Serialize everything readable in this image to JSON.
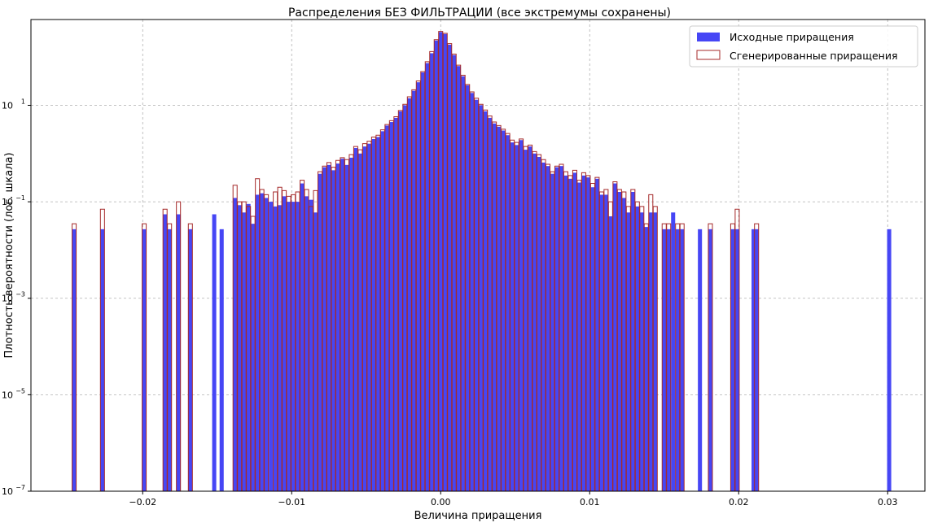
{
  "chart_data": {
    "type": "histogram",
    "title": "Распределения БЕЗ ФИЛЬТРАЦИИ (все экстремумы сохранены)",
    "xlabel": "Величина приращения",
    "ylabel": "Плотность вероятности (лог. шкала)",
    "xlim": [
      -0.0275,
      0.0325
    ],
    "ylim": [
      1e-07,
      600
    ],
    "y_scale": "log",
    "grid": true,
    "legend_position": "top-right",
    "x_ticks": [
      -0.02,
      -0.01,
      0.0,
      0.01,
      0.02,
      0.03
    ],
    "x_tick_labels": [
      "−0.02",
      "−0.01",
      "0.00",
      "0.01",
      "0.02",
      "0.03"
    ],
    "y_ticks": [
      1e-07,
      1e-05,
      0.001,
      0.1,
      10
    ],
    "y_tick_labels": [
      {
        "base": "10",
        "exp": "−7"
      },
      {
        "base": "10",
        "exp": "−5"
      },
      {
        "base": "10",
        "exp": "−3"
      },
      {
        "base": "10",
        "exp": "−1"
      },
      {
        "base": "10",
        "exp": "1"
      }
    ],
    "series": [
      {
        "name": "Исходные приращения",
        "style": "filled",
        "color": "#4646f5",
        "bin_width": 0.000275,
        "bars": [
          [
            -0.0246,
            0.027
          ],
          [
            -0.0227,
            0.027
          ],
          [
            -0.0199,
            0.027
          ],
          [
            -0.0185,
            0.055
          ],
          [
            -0.0182,
            0.027
          ],
          [
            -0.0176,
            0.055
          ],
          [
            -0.0168,
            0.027
          ],
          [
            -0.0152,
            0.055
          ],
          [
            -0.0147,
            0.027
          ],
          [
            -0.0138,
            0.12
          ],
          [
            -0.0135,
            0.085
          ],
          [
            -0.0132,
            0.06
          ],
          [
            -0.0129,
            0.09
          ],
          [
            -0.0126,
            0.035
          ],
          [
            -0.0123,
            0.14
          ],
          [
            -0.012,
            0.15
          ],
          [
            -0.0117,
            0.12
          ],
          [
            -0.0114,
            0.1
          ],
          [
            -0.0111,
            0.08
          ],
          [
            -0.0108,
            0.085
          ],
          [
            -0.0105,
            0.13
          ],
          [
            -0.0102,
            0.1
          ],
          [
            -0.0099,
            0.1
          ],
          [
            -0.0096,
            0.1
          ],
          [
            -0.0093,
            0.24
          ],
          [
            -0.009,
            0.13
          ],
          [
            -0.0087,
            0.11
          ],
          [
            -0.0084,
            0.06
          ],
          [
            -0.0081,
            0.38
          ],
          [
            -0.0078,
            0.52
          ],
          [
            -0.0075,
            0.58
          ],
          [
            -0.0072,
            0.45
          ],
          [
            -0.0069,
            0.62
          ],
          [
            -0.0066,
            0.78
          ],
          [
            -0.0063,
            0.58
          ],
          [
            -0.006,
            0.82
          ],
          [
            -0.0057,
            1.3
          ],
          [
            -0.0054,
            1.0
          ],
          [
            -0.0051,
            1.4
          ],
          [
            -0.0048,
            1.6
          ],
          [
            -0.0045,
            2.0
          ],
          [
            -0.0042,
            2.2
          ],
          [
            -0.0039,
            2.9
          ],
          [
            -0.0036,
            3.8
          ],
          [
            -0.0033,
            4.5
          ],
          [
            -0.003,
            5.5
          ],
          [
            -0.0027,
            7.5
          ],
          [
            -0.0024,
            10
          ],
          [
            -0.0021,
            14
          ],
          [
            -0.0018,
            20
          ],
          [
            -0.0015,
            30
          ],
          [
            -0.0012,
            48
          ],
          [
            -0.0009,
            75
          ],
          [
            -0.0006,
            120
          ],
          [
            -0.0003,
            220
          ],
          [
            0.0,
            330
          ],
          [
            0.0003,
            300
          ],
          [
            0.0006,
            180
          ],
          [
            0.0009,
            110
          ],
          [
            0.0012,
            65
          ],
          [
            0.0015,
            40
          ],
          [
            0.0018,
            26
          ],
          [
            0.0021,
            18
          ],
          [
            0.0024,
            13
          ],
          [
            0.0027,
            10
          ],
          [
            0.003,
            7.5
          ],
          [
            0.0033,
            5.5
          ],
          [
            0.0036,
            4.2
          ],
          [
            0.0039,
            3.6
          ],
          [
            0.0042,
            3.0
          ],
          [
            0.0045,
            2.4
          ],
          [
            0.0048,
            1.7
          ],
          [
            0.0051,
            1.5
          ],
          [
            0.0054,
            1.9
          ],
          [
            0.0057,
            1.2
          ],
          [
            0.006,
            1.4
          ],
          [
            0.0063,
            1.0
          ],
          [
            0.0066,
            0.85
          ],
          [
            0.0069,
            0.65
          ],
          [
            0.0072,
            0.55
          ],
          [
            0.0075,
            0.38
          ],
          [
            0.0078,
            0.52
          ],
          [
            0.0081,
            0.55
          ],
          [
            0.0084,
            0.35
          ],
          [
            0.0087,
            0.3
          ],
          [
            0.009,
            0.4
          ],
          [
            0.0093,
            0.25
          ],
          [
            0.0096,
            0.35
          ],
          [
            0.0099,
            0.32
          ],
          [
            0.0102,
            0.2
          ],
          [
            0.0105,
            0.3
          ],
          [
            0.0108,
            0.14
          ],
          [
            0.0111,
            0.14
          ],
          [
            0.0114,
            0.05
          ],
          [
            0.0117,
            0.24
          ],
          [
            0.012,
            0.16
          ],
          [
            0.0123,
            0.12
          ],
          [
            0.0126,
            0.06
          ],
          [
            0.0129,
            0.16
          ],
          [
            0.0132,
            0.08
          ],
          [
            0.0135,
            0.06
          ],
          [
            0.0138,
            0.03
          ],
          [
            0.0141,
            0.06
          ],
          [
            0.0144,
            0.06
          ],
          [
            0.015,
            0.027
          ],
          [
            0.0153,
            0.027
          ],
          [
            0.0156,
            0.06
          ],
          [
            0.0159,
            0.027
          ],
          [
            0.0162,
            0.027
          ],
          [
            0.0174,
            0.027
          ],
          [
            0.0181,
            0.027
          ],
          [
            0.0196,
            0.027
          ],
          [
            0.0199,
            0.027
          ],
          [
            0.021,
            0.027
          ],
          [
            0.0212,
            0.027
          ],
          [
            0.0301,
            0.027
          ]
        ]
      },
      {
        "name": "Сгенерированные приращения",
        "style": "step",
        "color": "#a52a2a",
        "bin_width": 0.000275,
        "bars": [
          [
            -0.0246,
            0.035
          ],
          [
            -0.0227,
            0.07
          ],
          [
            -0.0199,
            0.035
          ],
          [
            -0.0185,
            0.07
          ],
          [
            -0.0182,
            0.035
          ],
          [
            -0.0176,
            0.1
          ],
          [
            -0.0168,
            0.035
          ],
          [
            -0.0138,
            0.22
          ],
          [
            -0.0135,
            0.1
          ],
          [
            -0.0132,
            0.1
          ],
          [
            -0.0129,
            0.08
          ],
          [
            -0.0126,
            0.05
          ],
          [
            -0.0123,
            0.3
          ],
          [
            -0.012,
            0.18
          ],
          [
            -0.0117,
            0.14
          ],
          [
            -0.0111,
            0.16
          ],
          [
            -0.0108,
            0.2
          ],
          [
            -0.0105,
            0.17
          ],
          [
            -0.0102,
            0.13
          ],
          [
            -0.0099,
            0.14
          ],
          [
            -0.0096,
            0.16
          ],
          [
            -0.0093,
            0.28
          ],
          [
            -0.009,
            0.18
          ],
          [
            -0.0087,
            0.08
          ],
          [
            -0.0084,
            0.17
          ],
          [
            -0.0081,
            0.42
          ],
          [
            -0.0078,
            0.55
          ],
          [
            -0.0075,
            0.65
          ],
          [
            -0.0072,
            0.52
          ],
          [
            -0.0069,
            0.72
          ],
          [
            -0.0066,
            0.82
          ],
          [
            -0.0063,
            0.75
          ],
          [
            -0.006,
            0.95
          ],
          [
            -0.0057,
            1.4
          ],
          [
            -0.0054,
            1.2
          ],
          [
            -0.0051,
            1.6
          ],
          [
            -0.0048,
            1.8
          ],
          [
            -0.0045,
            2.2
          ],
          [
            -0.0042,
            2.4
          ],
          [
            -0.0039,
            3.1
          ],
          [
            -0.0036,
            4.0
          ],
          [
            -0.0033,
            4.8
          ],
          [
            -0.003,
            5.8
          ],
          [
            -0.0027,
            7.8
          ],
          [
            -0.0024,
            10.5
          ],
          [
            -0.0021,
            15
          ],
          [
            -0.0018,
            21
          ],
          [
            -0.0015,
            32
          ],
          [
            -0.0012,
            50
          ],
          [
            -0.0009,
            80
          ],
          [
            -0.0006,
            130
          ],
          [
            -0.0003,
            230
          ],
          [
            0.0,
            340
          ],
          [
            0.0003,
            310
          ],
          [
            0.0006,
            190
          ],
          [
            0.0009,
            115
          ],
          [
            0.0012,
            68
          ],
          [
            0.0015,
            42
          ],
          [
            0.0018,
            27
          ],
          [
            0.0021,
            19
          ],
          [
            0.0024,
            14
          ],
          [
            0.0027,
            10.5
          ],
          [
            0.003,
            8
          ],
          [
            0.0033,
            6
          ],
          [
            0.0036,
            4.5
          ],
          [
            0.0039,
            3.8
          ],
          [
            0.0042,
            3.2
          ],
          [
            0.0045,
            2.6
          ],
          [
            0.0048,
            1.9
          ],
          [
            0.0051,
            1.7
          ],
          [
            0.0054,
            2.0
          ],
          [
            0.0057,
            1.4
          ],
          [
            0.006,
            1.5
          ],
          [
            0.0063,
            1.1
          ],
          [
            0.0066,
            0.95
          ],
          [
            0.0069,
            0.75
          ],
          [
            0.0072,
            0.6
          ],
          [
            0.0075,
            0.42
          ],
          [
            0.0078,
            0.55
          ],
          [
            0.0081,
            0.6
          ],
          [
            0.0084,
            0.42
          ],
          [
            0.0087,
            0.35
          ],
          [
            0.009,
            0.45
          ],
          [
            0.0093,
            0.28
          ],
          [
            0.0096,
            0.4
          ],
          [
            0.0099,
            0.35
          ],
          [
            0.0102,
            0.24
          ],
          [
            0.0105,
            0.32
          ],
          [
            0.0108,
            0.16
          ],
          [
            0.0111,
            0.18
          ],
          [
            0.0114,
            0.1
          ],
          [
            0.0117,
            0.26
          ],
          [
            0.012,
            0.18
          ],
          [
            0.0123,
            0.16
          ],
          [
            0.0126,
            0.08
          ],
          [
            0.0129,
            0.18
          ],
          [
            0.0132,
            0.1
          ],
          [
            0.0135,
            0.08
          ],
          [
            0.0138,
            0.035
          ],
          [
            0.0141,
            0.14
          ],
          [
            0.0144,
            0.08
          ],
          [
            0.015,
            0.035
          ],
          [
            0.0153,
            0.035
          ],
          [
            0.0159,
            0.035
          ],
          [
            0.0162,
            0.035
          ],
          [
            0.0181,
            0.035
          ],
          [
            0.0196,
            0.035
          ],
          [
            0.0199,
            0.07
          ],
          [
            0.0212,
            0.035
          ]
        ]
      }
    ]
  }
}
